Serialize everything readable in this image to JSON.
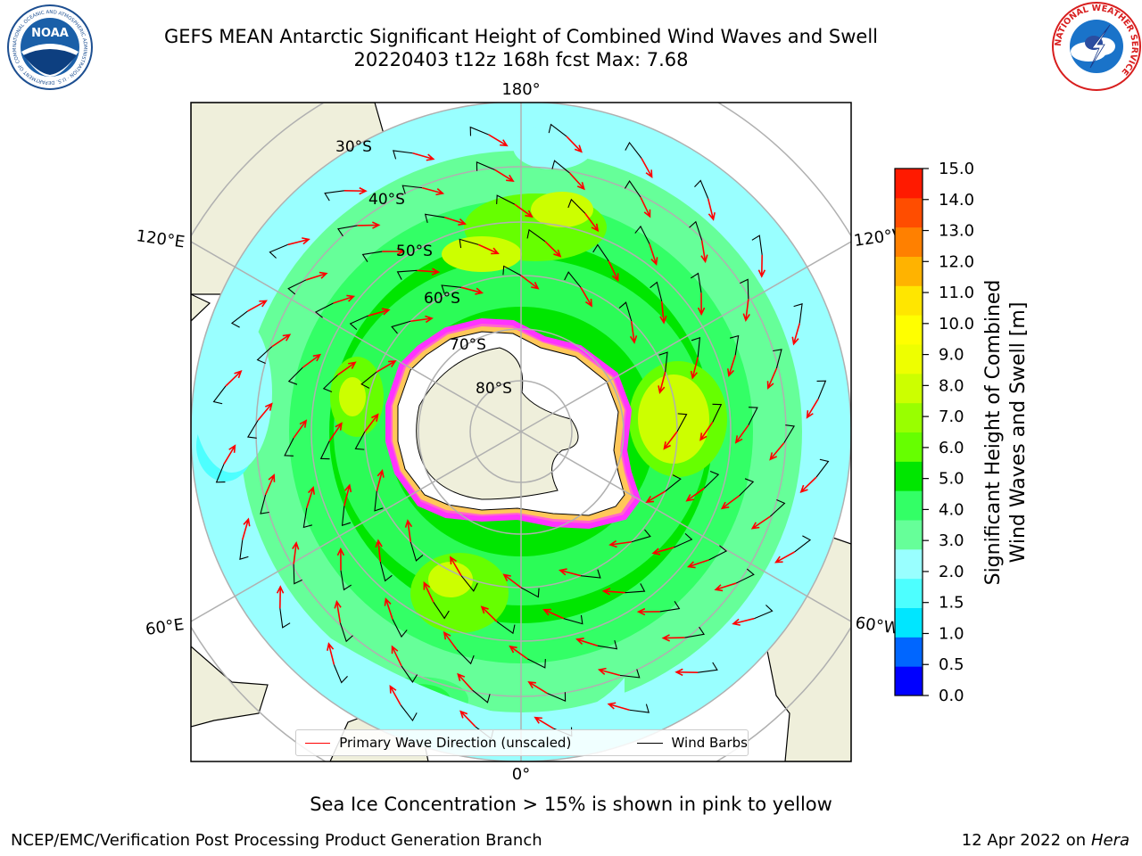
{
  "header": {
    "title_line1": "GEFS MEAN Antarctic Significant Height of Combined Wind Waves and Swell",
    "title_line2": "20220403 t12z 168h fcst   Max: 7.68"
  },
  "logos": {
    "noaa": {
      "text": "NOAA",
      "ring_text": "NATIONAL OCEANIC AND ATMOSPHERIC ADMINISTRATION · U.S. DEPARTMENT OF COMMERCE"
    },
    "nws": {
      "ring_text": "NATIONAL WEATHER SERVICE"
    }
  },
  "map": {
    "lon_labels": {
      "top": "180°",
      "bottom": "0°",
      "upper_left": "120°E",
      "lower_left": "60°E",
      "upper_right": "120°W",
      "lower_right": "60°W"
    },
    "lat_labels": [
      "30°S",
      "40°S",
      "50°S",
      "60°S",
      "70°S",
      "80°S"
    ],
    "legend": {
      "primary_wave_label": "Primary Wave Direction (unscaled)",
      "wind_barbs_label": "Wind Barbs",
      "primary_wave_color": "#ff0000",
      "wind_barbs_color": "#000000"
    }
  },
  "colorbar": {
    "label": "Significant Height of Combined Wind Waves and Swell [m]",
    "label_line1": "Significant Height of Combined",
    "label_line2": "Wind Waves and Swell [m]",
    "ticks": [
      "15.0",
      "14.0",
      "13.0",
      "12.0",
      "11.0",
      "10.0",
      "9.0",
      "8.0",
      "7.0",
      "6.0",
      "5.0",
      "4.0",
      "3.0",
      "2.0",
      "1.5",
      "1.0",
      "0.5",
      "0.0"
    ],
    "colors_bottom_to_top": [
      "#0000ff",
      "#0066ff",
      "#00e6ff",
      "#4dffff",
      "#99ffff",
      "#66ff99",
      "#33ff66",
      "#00e600",
      "#66ff00",
      "#99ff00",
      "#ccff00",
      "#eeff00",
      "#ffff00",
      "#ffe600",
      "#ffb300",
      "#ff8000",
      "#ff4d00",
      "#ff1a00"
    ]
  },
  "notes": {
    "sea_ice": "Sea Ice Concentration > 15% is shown in pink to yellow"
  },
  "footer": {
    "left": "NCEP/EMC/Verification Post Processing Product Generation Branch",
    "date": "12 Apr 2022 on ",
    "host": "Hera"
  }
}
